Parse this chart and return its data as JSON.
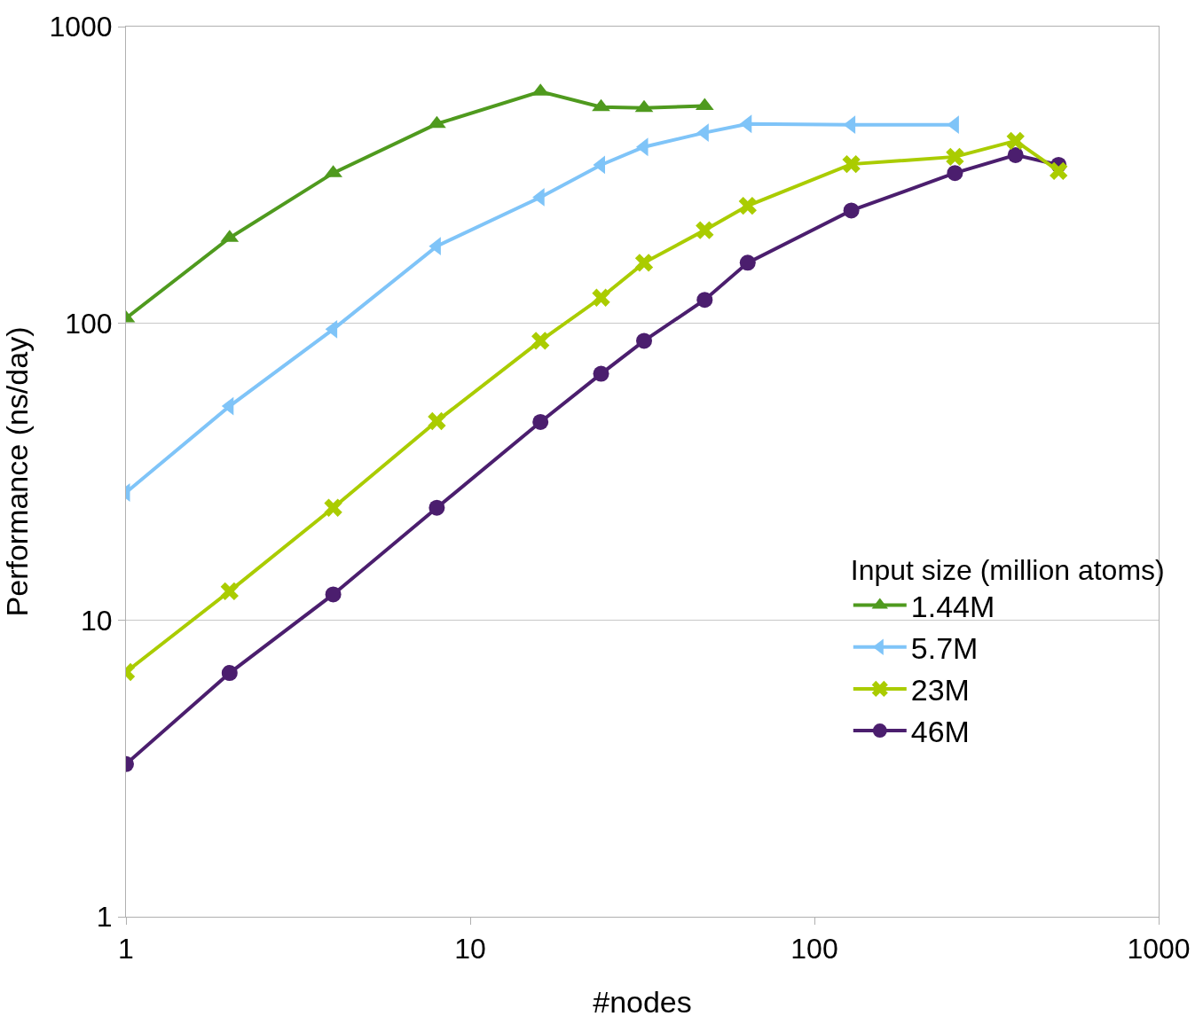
{
  "chart_data": {
    "type": "line",
    "xlabel": "#nodes",
    "ylabel": "Performance (ns/day)",
    "legend_title": "Input size (million atoms)",
    "log": "xy",
    "grid": "y",
    "legend": "right",
    "xlim": [
      1,
      1000
    ],
    "ylim": [
      1,
      1000
    ],
    "xticks": [
      1,
      10,
      100,
      1000
    ],
    "yticks": [
      1,
      10,
      100,
      1000
    ],
    "series": [
      {
        "name": "1.44M",
        "color": "#4f9a1e",
        "marker": "triangle-up",
        "x": [
          1,
          2,
          4,
          8,
          16,
          24,
          32,
          48
        ],
        "values": [
          104,
          194,
          321,
          470,
          604,
          536,
          532,
          540
        ]
      },
      {
        "name": "5.7M",
        "color": "#7fc4f8",
        "marker": "triangle-left",
        "x": [
          1,
          2,
          4,
          8,
          16,
          24,
          32,
          48,
          64,
          128,
          256
        ],
        "values": [
          26.9,
          52.6,
          95.5,
          182,
          266,
          342,
          393,
          439,
          470,
          467,
          467
        ]
      },
      {
        "name": "23M",
        "color": "#aacc00",
        "marker": "cross",
        "x": [
          1,
          2,
          4,
          8,
          16,
          24,
          32,
          48,
          64,
          128,
          256,
          384,
          512
        ],
        "values": [
          6.68,
          12.5,
          23.9,
          46.8,
          87.3,
          122,
          160,
          206,
          249,
          344,
          364,
          412,
          326
        ]
      },
      {
        "name": "46M",
        "color": "#4b1e6e",
        "marker": "circle",
        "x": [
          1,
          2,
          4,
          8,
          16,
          24,
          32,
          48,
          64,
          128,
          256,
          384,
          512
        ],
        "values": [
          3.27,
          6.63,
          12.2,
          23.9,
          46.5,
          67.6,
          87.3,
          120,
          160,
          240,
          321,
          369,
          342
        ]
      }
    ]
  }
}
